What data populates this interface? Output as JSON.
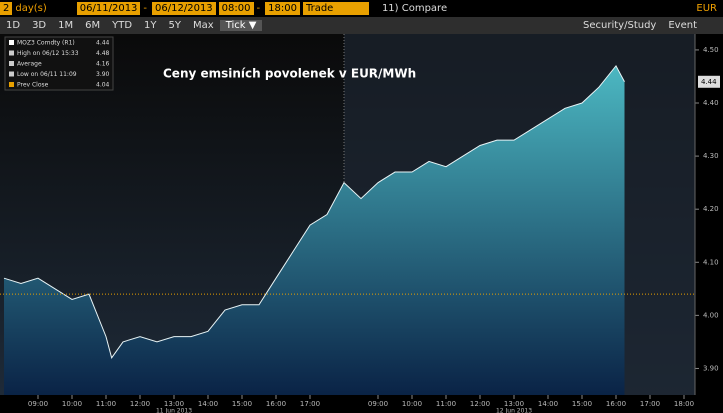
{
  "toolbar": {
    "count": "2",
    "unit": "day(s)",
    "start_date": "06/11/2013",
    "date_sep": "-",
    "end_date": "06/12/2013",
    "start_time": "08:00",
    "time_sep": "-",
    "end_time": "18:00",
    "field": "Trade",
    "compare": "11) Compare",
    "currency": "EUR",
    "ranges": [
      "1D",
      "3D",
      "1M",
      "6M",
      "YTD",
      "1Y",
      "5Y",
      "Max"
    ],
    "active": "Tick ▼",
    "security": "Security/Study",
    "event": "Event"
  },
  "chart_data": {
    "type": "area",
    "title": "Ceny emsiních povolenek v EUR/MWh",
    "legend": [
      {
        "name": "MOZ3 Comdty (R1)",
        "value": 4.44
      },
      {
        "name": "High on 06/12 15:33",
        "value": 4.48
      },
      {
        "name": "Average",
        "value": 4.16
      },
      {
        "name": "Low on 06/11 11:09",
        "value": 3.9,
        "label": "3.90"
      },
      {
        "name": "Prev Close",
        "value": 4.04
      }
    ],
    "prev_close": 4.04,
    "last_price": 4.44,
    "day_labels": [
      "11 Jun 2013",
      "12 Jun 2013"
    ],
    "x": [
      "2013-06-11 08:00",
      "2013-06-11 08:30",
      "2013-06-11 09:00",
      "2013-06-11 09:30",
      "2013-06-11 10:00",
      "2013-06-11 10:30",
      "2013-06-11 11:00",
      "2013-06-11 11:10",
      "2013-06-11 11:30",
      "2013-06-11 12:00",
      "2013-06-11 12:30",
      "2013-06-11 13:00",
      "2013-06-11 13:30",
      "2013-06-11 14:00",
      "2013-06-11 14:30",
      "2013-06-11 15:00",
      "2013-06-11 15:30",
      "2013-06-11 16:00",
      "2013-06-11 16:30",
      "2013-06-11 17:00",
      "2013-06-11 17:30",
      "2013-06-11 18:00",
      "2013-06-12 08:00",
      "2013-06-12 08:30",
      "2013-06-12 09:00",
      "2013-06-12 09:30",
      "2013-06-12 10:00",
      "2013-06-12 10:30",
      "2013-06-12 11:00",
      "2013-06-12 11:30",
      "2013-06-12 12:00",
      "2013-06-12 12:30",
      "2013-06-12 13:00",
      "2013-06-12 13:30",
      "2013-06-12 14:00",
      "2013-06-12 14:30",
      "2013-06-12 15:00",
      "2013-06-12 15:30",
      "2013-06-12 16:00",
      "2013-06-12 16:15"
    ],
    "series": [
      {
        "name": "MOZ3 Comdty (R1)",
        "color": "#3fa6b4",
        "values": [
          4.07,
          4.06,
          4.07,
          4.05,
          4.03,
          4.04,
          3.96,
          3.92,
          3.95,
          3.96,
          3.95,
          3.96,
          3.96,
          3.97,
          4.01,
          4.02,
          4.02,
          4.07,
          4.12,
          4.17,
          4.19,
          4.25,
          4.25,
          4.22,
          4.25,
          4.27,
          4.27,
          4.29,
          4.28,
          4.3,
          4.32,
          4.33,
          4.33,
          4.35,
          4.37,
          4.39,
          4.4,
          4.43,
          4.47,
          4.44
        ]
      }
    ],
    "ylim": [
      3.85,
      4.53
    ],
    "yticks": [
      {
        "value": 3.9,
        "label": "3.90"
      },
      {
        "value": 4,
        "label": "4.00"
      },
      {
        "value": 4.1,
        "label": "4.10"
      },
      {
        "value": 4.2,
        "label": "4.20"
      },
      {
        "value": 4.3,
        "label": "4.30"
      },
      {
        "value": 4.4,
        "label": "4.40"
      },
      {
        "value": 4.5,
        "label": "4.50"
      }
    ],
    "xticks": [
      {
        "value": "2013-06-11 09:00",
        "label": "09:00"
      },
      {
        "value": "2013-06-11 10:00",
        "label": "10:00"
      },
      {
        "value": "2013-06-11 11:00",
        "label": "11:00"
      },
      {
        "value": "2013-06-11 12:00",
        "label": "12:00"
      },
      {
        "value": "2013-06-11 13:00",
        "label": "13:00"
      },
      {
        "value": "2013-06-11 14:00",
        "label": "14:00"
      },
      {
        "value": "2013-06-11 15:00",
        "label": "15:00"
      },
      {
        "value": "2013-06-11 16:00",
        "label": "16:00"
      },
      {
        "value": "2013-06-11 17:00",
        "label": "17:00"
      },
      {
        "value": "2013-06-12 09:00",
        "label": "09:00"
      },
      {
        "value": "2013-06-12 10:00",
        "label": "10:00"
      },
      {
        "value": "2013-06-12 11:00",
        "label": "11:00"
      },
      {
        "value": "2013-06-12 12:00",
        "label": "12:00"
      },
      {
        "value": "2013-06-12 13:00",
        "label": "13:00"
      },
      {
        "value": "2013-06-12 14:00",
        "label": "14:00"
      },
      {
        "value": "2013-06-12 15:00",
        "label": "15:00"
      },
      {
        "value": "2013-06-12 16:00",
        "label": "16:00"
      },
      {
        "value": "2013-06-12 17:00",
        "label": "17:00"
      },
      {
        "value": "2013-06-12 18:00",
        "label": "18:00"
      }
    ]
  }
}
